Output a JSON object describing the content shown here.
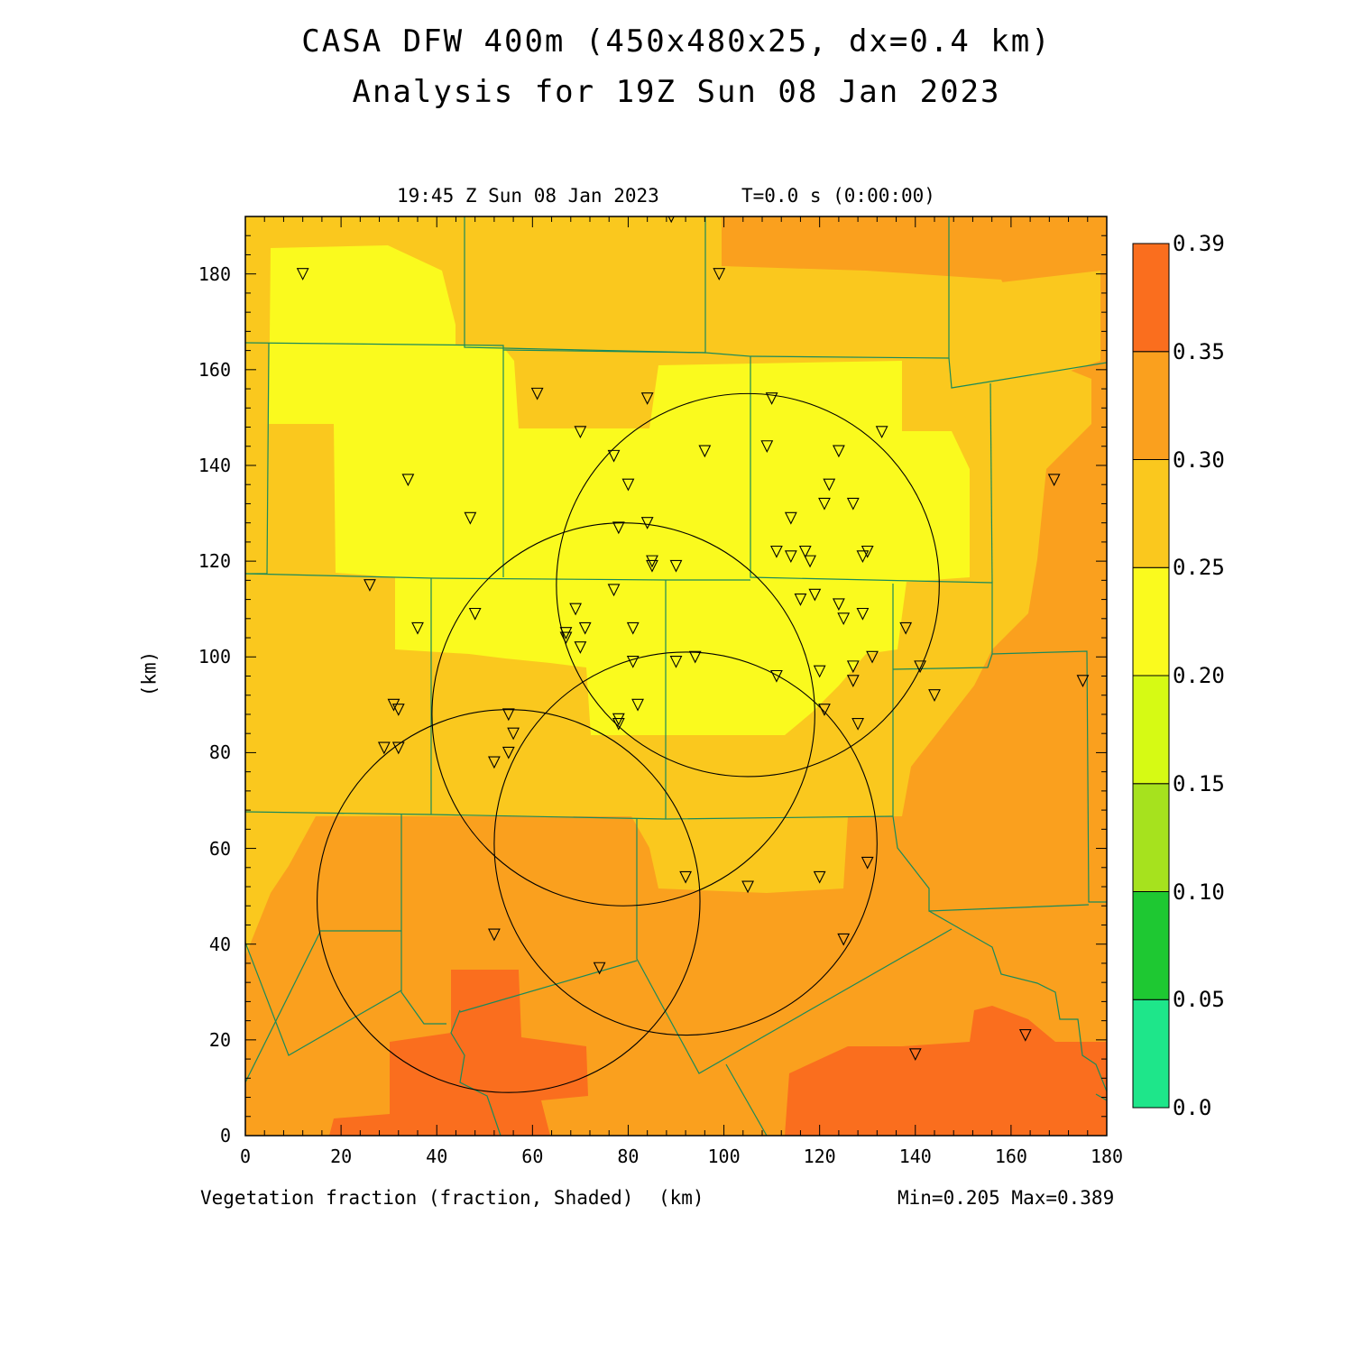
{
  "header": {
    "title": "CASA DFW 400m (450x480x25, dx=0.4 km)",
    "subtitle": "Analysis for 19Z Sun 08 Jan 2023",
    "valid_time": "19:45 Z Sun 08 Jan 2023",
    "forecast_time": "T=0.0 s (0:00:00)"
  },
  "footer": {
    "field_label": "Vegetation fraction (fraction, Shaded)",
    "x_unit": "(km)",
    "stats": "Min=0.205 Max=0.389"
  },
  "axes": {
    "y_label": "(km)",
    "x_ticks": [
      "0",
      "20",
      "40",
      "60",
      "80",
      "100",
      "120",
      "140",
      "160",
      "180"
    ],
    "y_ticks": [
      "0",
      "20",
      "40",
      "60",
      "80",
      "100",
      "120",
      "140",
      "160",
      "180"
    ],
    "x_range_km": [
      0,
      180
    ],
    "y_range_km": [
      0,
      192
    ]
  },
  "colorbar": {
    "labels": [
      "0.0",
      "0.05",
      "0.10",
      "0.15",
      "0.20",
      "0.25",
      "0.30",
      "0.35",
      "0.39"
    ],
    "colors": [
      "#1ee68a",
      "#1ec832",
      "#a6e21e",
      "#d6fa14",
      "#fafa1e",
      "#fac81e",
      "#faa01e",
      "#fa6e1e"
    ]
  },
  "chart_data": {
    "type": "heatmap",
    "field": "Vegetation fraction",
    "min": 0.205,
    "max": 0.389,
    "radar_range_circles_km": [
      {
        "x": 105,
        "y": 115,
        "r": 40
      },
      {
        "x": 79,
        "y": 88,
        "r": 40
      },
      {
        "x": 92,
        "y": 61,
        "r": 40
      },
      {
        "x": 55,
        "y": 49,
        "r": 40
      }
    ],
    "stations_km": [
      [
        12,
        180
      ],
      [
        89,
        192
      ],
      [
        99,
        180
      ],
      [
        61,
        155
      ],
      [
        84,
        154
      ],
      [
        110,
        154
      ],
      [
        70,
        147
      ],
      [
        133,
        147
      ],
      [
        96,
        143
      ],
      [
        109,
        144
      ],
      [
        124,
        143
      ],
      [
        77,
        142
      ],
      [
        169,
        137
      ],
      [
        34,
        137
      ],
      [
        80,
        136
      ],
      [
        122,
        136
      ],
      [
        121,
        132
      ],
      [
        127,
        132
      ],
      [
        47,
        129
      ],
      [
        114,
        129
      ],
      [
        78,
        127
      ],
      [
        84,
        128
      ],
      [
        111,
        122
      ],
      [
        114,
        121
      ],
      [
        117,
        122
      ],
      [
        118,
        120
      ],
      [
        129,
        121
      ],
      [
        130,
        122
      ],
      [
        85,
        120
      ],
      [
        85,
        119
      ],
      [
        90,
        119
      ],
      [
        26,
        115
      ],
      [
        77,
        114
      ],
      [
        116,
        112
      ],
      [
        119,
        113
      ],
      [
        69,
        110
      ],
      [
        124,
        111
      ],
      [
        125,
        108
      ],
      [
        129,
        109
      ],
      [
        48,
        109
      ],
      [
        36,
        106
      ],
      [
        67,
        104
      ],
      [
        67,
        105
      ],
      [
        71,
        106
      ],
      [
        81,
        106
      ],
      [
        70,
        102
      ],
      [
        138,
        106
      ],
      [
        131,
        100
      ],
      [
        94,
        100
      ],
      [
        90,
        99
      ],
      [
        81,
        99
      ],
      [
        111,
        96
      ],
      [
        120,
        97
      ],
      [
        127,
        98
      ],
      [
        141,
        98
      ],
      [
        175,
        95
      ],
      [
        127,
        95
      ],
      [
        144,
        92
      ],
      [
        31,
        90
      ],
      [
        32,
        89
      ],
      [
        82,
        90
      ],
      [
        121,
        89
      ],
      [
        55,
        88
      ],
      [
        78,
        87
      ],
      [
        78,
        86
      ],
      [
        128,
        86
      ],
      [
        56,
        84
      ],
      [
        29,
        81
      ],
      [
        32,
        81
      ],
      [
        55,
        80
      ],
      [
        52,
        78
      ],
      [
        130,
        57
      ],
      [
        92,
        54
      ],
      [
        120,
        54
      ],
      [
        105,
        52
      ],
      [
        52,
        42
      ],
      [
        125,
        41
      ],
      [
        74,
        35
      ],
      [
        140,
        17
      ],
      [
        163,
        21
      ]
    ]
  }
}
